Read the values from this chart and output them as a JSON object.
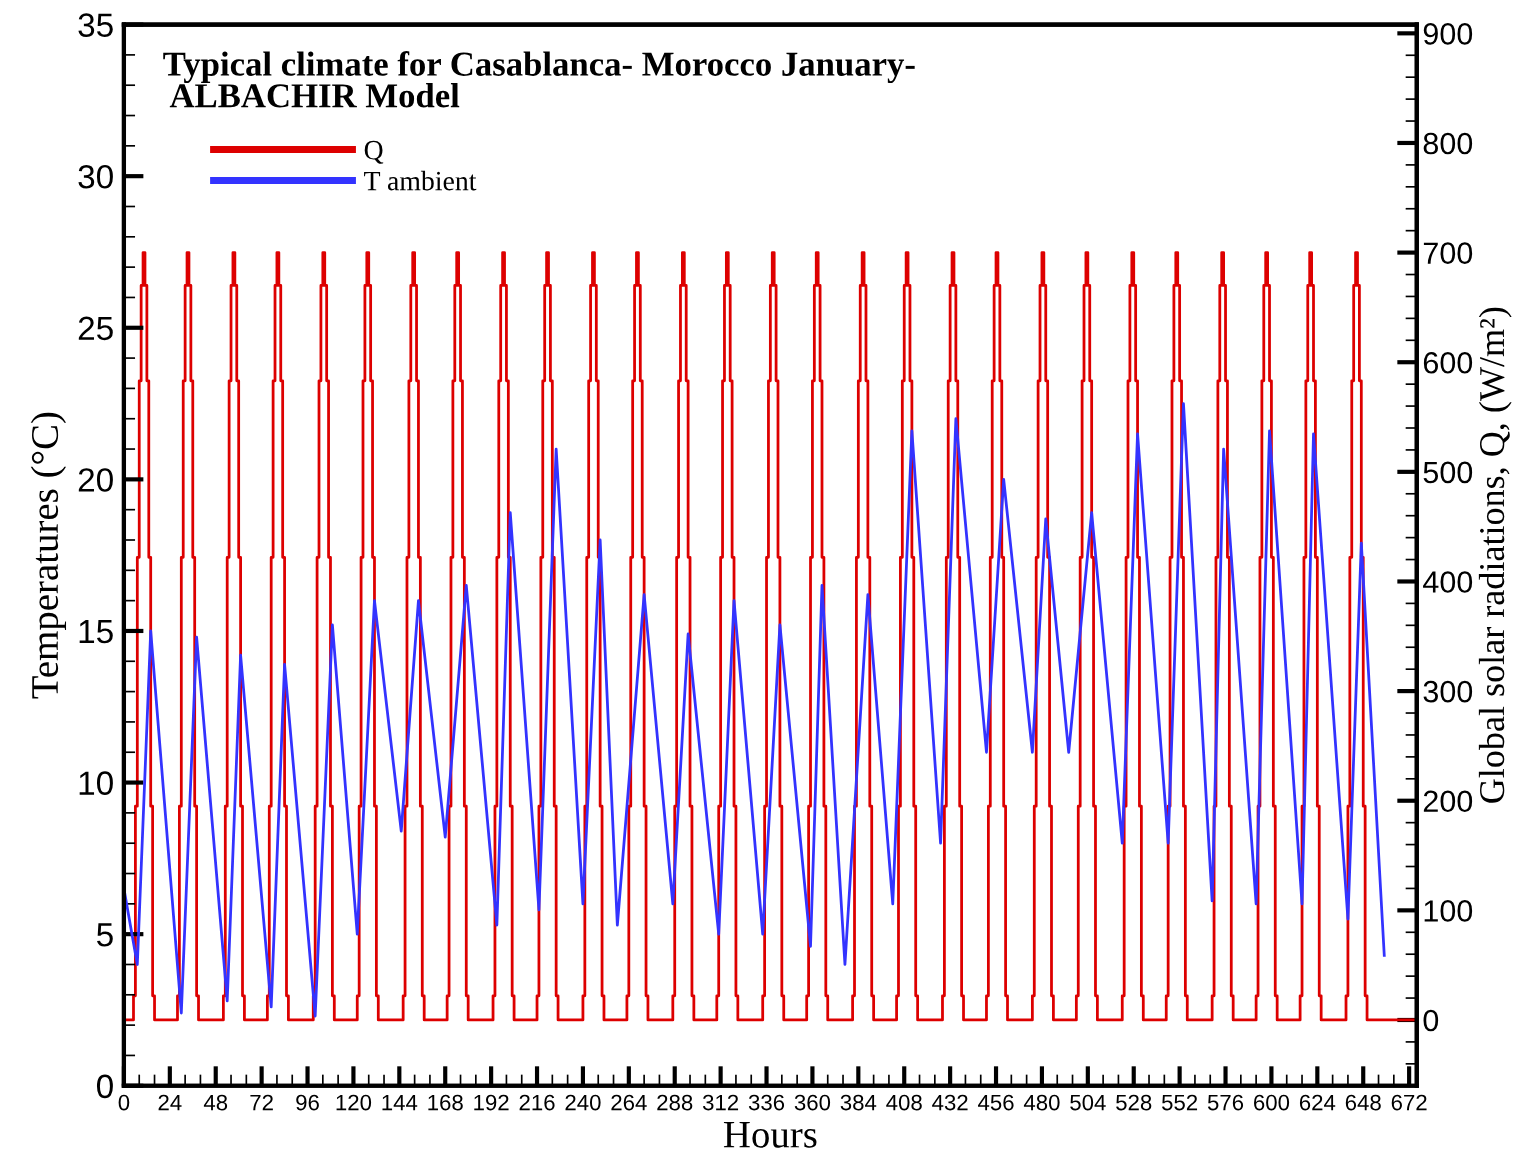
{
  "chart_data": {
    "type": "line",
    "title": "Typical climate for Casablanca- Morocco January-\n ALBACHIR Model",
    "xlabel": "Hours",
    "ylabel": "Temperatures (°C)",
    "y2label": "Global solar radiations, Q, (W/m²)",
    "xlim": [
      0,
      676
    ],
    "xticks": [
      0,
      24,
      48,
      72,
      96,
      120,
      144,
      168,
      192,
      216,
      240,
      264,
      288,
      312,
      336,
      360,
      384,
      408,
      432,
      456,
      480,
      504,
      528,
      552,
      576,
      600,
      624,
      648,
      672
    ],
    "ylim": [
      0,
      35
    ],
    "yticks": [
      0,
      5,
      10,
      15,
      20,
      25,
      30,
      35
    ],
    "y2lim": [
      -60,
      908
    ],
    "y2ticks": [
      0,
      100,
      200,
      300,
      400,
      500,
      600,
      700,
      800,
      900
    ],
    "grid": false,
    "legend": "top left",
    "series": [
      {
        "name": "Q",
        "color": "#dd0000",
        "type": "step",
        "axis": "y2",
        "x": [
          0,
          5,
          6,
          7,
          8,
          9,
          10,
          11,
          12,
          13,
          14,
          15,
          16,
          28,
          29,
          30,
          31,
          32,
          33,
          34,
          35,
          36,
          37,
          38,
          39,
          52,
          53,
          54,
          55,
          56,
          57,
          58,
          59,
          60,
          61,
          62,
          63,
          75,
          76,
          77,
          78,
          79,
          80,
          81,
          82,
          83,
          84,
          85,
          86,
          99,
          100,
          101,
          102,
          103,
          104,
          105,
          106,
          107,
          108,
          109,
          110,
          122,
          123,
          124,
          125,
          126,
          127,
          128,
          129,
          130,
          131,
          132,
          133,
          146,
          147,
          148,
          149,
          150,
          151,
          152,
          153,
          154,
          155,
          156,
          157,
          169,
          170,
          171,
          172,
          173,
          174,
          175,
          176,
          177,
          178,
          179,
          180,
          193,
          194,
          195,
          196,
          197,
          198,
          199,
          200,
          201,
          202,
          203,
          204,
          216,
          217,
          218,
          219,
          220,
          221,
          222,
          223,
          224,
          225,
          226,
          227,
          240,
          241,
          242,
          243,
          244,
          245,
          246,
          247,
          248,
          249,
          250,
          251,
          263,
          264,
          265,
          266,
          267,
          268,
          269,
          270,
          271,
          272,
          273,
          274,
          287,
          288,
          289,
          290,
          291,
          292,
          293,
          294,
          295,
          296,
          297,
          298,
          310,
          311,
          312,
          313,
          314,
          315,
          316,
          317,
          318,
          319,
          320,
          321,
          334,
          335,
          336,
          337,
          338,
          339,
          340,
          341,
          342,
          343,
          344,
          345,
          357,
          358,
          359,
          360,
          361,
          362,
          363,
          364,
          365,
          366,
          367,
          368,
          381,
          382,
          383,
          384,
          385,
          386,
          387,
          388,
          389,
          390,
          391,
          392,
          404,
          405,
          406,
          407,
          408,
          409,
          410,
          411,
          412,
          413,
          414,
          415,
          428,
          429,
          430,
          431,
          432,
          433,
          434,
          435,
          436,
          437,
          438,
          439,
          451,
          452,
          453,
          454,
          455,
          456,
          457,
          458,
          459,
          460,
          461,
          462,
          475,
          476,
          477,
          478,
          479,
          480,
          481,
          482,
          483,
          484,
          485,
          486,
          498,
          499,
          500,
          501,
          502,
          503,
          504,
          505,
          506,
          507,
          508,
          509,
          522,
          523,
          524,
          525,
          526,
          527,
          528,
          529,
          530,
          531,
          532,
          533,
          545,
          546,
          547,
          548,
          549,
          550,
          551,
          552,
          553,
          554,
          555,
          556,
          569,
          570,
          571,
          572,
          573,
          574,
          575,
          576,
          577,
          578,
          579,
          580,
          592,
          593,
          594,
          595,
          596,
          597,
          598,
          599,
          600,
          601,
          602,
          603,
          615,
          616,
          617,
          618,
          619,
          620,
          621,
          622,
          623,
          624,
          625,
          626,
          639,
          640,
          641,
          642,
          643,
          644,
          645,
          646,
          647,
          648,
          649,
          650,
          676
        ],
        "values": [
          0,
          22,
          195,
          422,
          583,
          670,
          700,
          670,
          583,
          422,
          195,
          22,
          0,
          22,
          195,
          422,
          583,
          670,
          700,
          670,
          583,
          422,
          195,
          22,
          0,
          22,
          195,
          422,
          583,
          670,
          700,
          670,
          583,
          422,
          195,
          22,
          0,
          22,
          195,
          422,
          583,
          670,
          700,
          670,
          583,
          422,
          195,
          22,
          0,
          22,
          195,
          422,
          583,
          670,
          700,
          670,
          583,
          422,
          195,
          22,
          0,
          22,
          195,
          422,
          583,
          670,
          700,
          670,
          583,
          422,
          195,
          22,
          0,
          22,
          195,
          422,
          583,
          670,
          700,
          670,
          583,
          422,
          195,
          22,
          0,
          22,
          195,
          422,
          583,
          670,
          700,
          670,
          583,
          422,
          195,
          22,
          0,
          22,
          195,
          422,
          583,
          670,
          700,
          670,
          583,
          422,
          195,
          22,
          0,
          22,
          195,
          422,
          583,
          670,
          700,
          670,
          583,
          422,
          195,
          22,
          0,
          22,
          195,
          422,
          583,
          670,
          700,
          670,
          583,
          422,
          195,
          22,
          0,
          22,
          195,
          422,
          583,
          670,
          700,
          670,
          583,
          422,
          195,
          22,
          0,
          22,
          195,
          422,
          583,
          670,
          700,
          670,
          583,
          422,
          195,
          22,
          0,
          22,
          195,
          422,
          583,
          670,
          700,
          670,
          583,
          422,
          195,
          22,
          0,
          22,
          195,
          422,
          583,
          670,
          700,
          670,
          583,
          422,
          195,
          22,
          0,
          22,
          195,
          422,
          583,
          670,
          700,
          670,
          583,
          422,
          195,
          22,
          0,
          22,
          195,
          422,
          583,
          670,
          700,
          670,
          583,
          422,
          195,
          22,
          0,
          22,
          195,
          422,
          583,
          670,
          700,
          670,
          583,
          422,
          195,
          22,
          0,
          22,
          195,
          422,
          583,
          670,
          700,
          670,
          583,
          422,
          195,
          22,
          0,
          22,
          195,
          422,
          583,
          670,
          700,
          670,
          583,
          422,
          195,
          22,
          0,
          22,
          195,
          422,
          583,
          670,
          700,
          670,
          583,
          422,
          195,
          22,
          0,
          22,
          195,
          422,
          583,
          670,
          700,
          670,
          583,
          422,
          195,
          22,
          0,
          22,
          195,
          422,
          583,
          670,
          700,
          670,
          583,
          422,
          195,
          22,
          0,
          22,
          195,
          422,
          583,
          670,
          700,
          670,
          583,
          422,
          195,
          22,
          0,
          22,
          195,
          422,
          583,
          670,
          700,
          670,
          583,
          422,
          195,
          22,
          0,
          22,
          195,
          422,
          583,
          670,
          700,
          670,
          583,
          422,
          195,
          22,
          0,
          22,
          195,
          422,
          583,
          670,
          700,
          670,
          583,
          422,
          195,
          22,
          0,
          22,
          195,
          422,
          583,
          670,
          700,
          670,
          583,
          422,
          195,
          22,
          0,
          0
        ]
      },
      {
        "name": "T ambient",
        "color": "#3333ff",
        "axis": "y",
        "x": [
          0,
          7,
          14,
          30,
          38,
          54,
          61,
          77,
          84,
          100,
          109,
          122,
          131,
          145,
          154,
          168,
          179,
          195,
          202,
          217,
          226,
          240,
          249,
          258,
          272,
          287,
          295,
          311,
          319,
          334,
          343,
          359,
          365,
          377,
          389,
          402,
          412,
          427,
          435,
          451,
          460,
          475,
          482,
          494,
          506,
          522,
          530,
          546,
          554,
          569,
          575,
          592,
          599,
          616,
          622,
          640,
          647,
          659
        ],
        "values": [
          6.5,
          4.0,
          15.0,
          2.4,
          14.8,
          2.8,
          14.2,
          2.6,
          13.9,
          2.3,
          15.2,
          5.0,
          16.0,
          8.4,
          16.0,
          8.2,
          16.5,
          5.3,
          18.9,
          5.8,
          21.0,
          6.0,
          18.0,
          5.3,
          16.2,
          6.0,
          14.9,
          5.0,
          16.0,
          5.0,
          15.2,
          4.6,
          16.5,
          4.0,
          16.2,
          6.0,
          21.6,
          8.0,
          22.0,
          11.0,
          20.0,
          11.0,
          18.7,
          11.0,
          18.9,
          8.0,
          21.5,
          8.0,
          22.5,
          6.1,
          21.0,
          6.0,
          21.6,
          6.0,
          21.5,
          5.5,
          17.9,
          4.3
        ]
      }
    ]
  }
}
